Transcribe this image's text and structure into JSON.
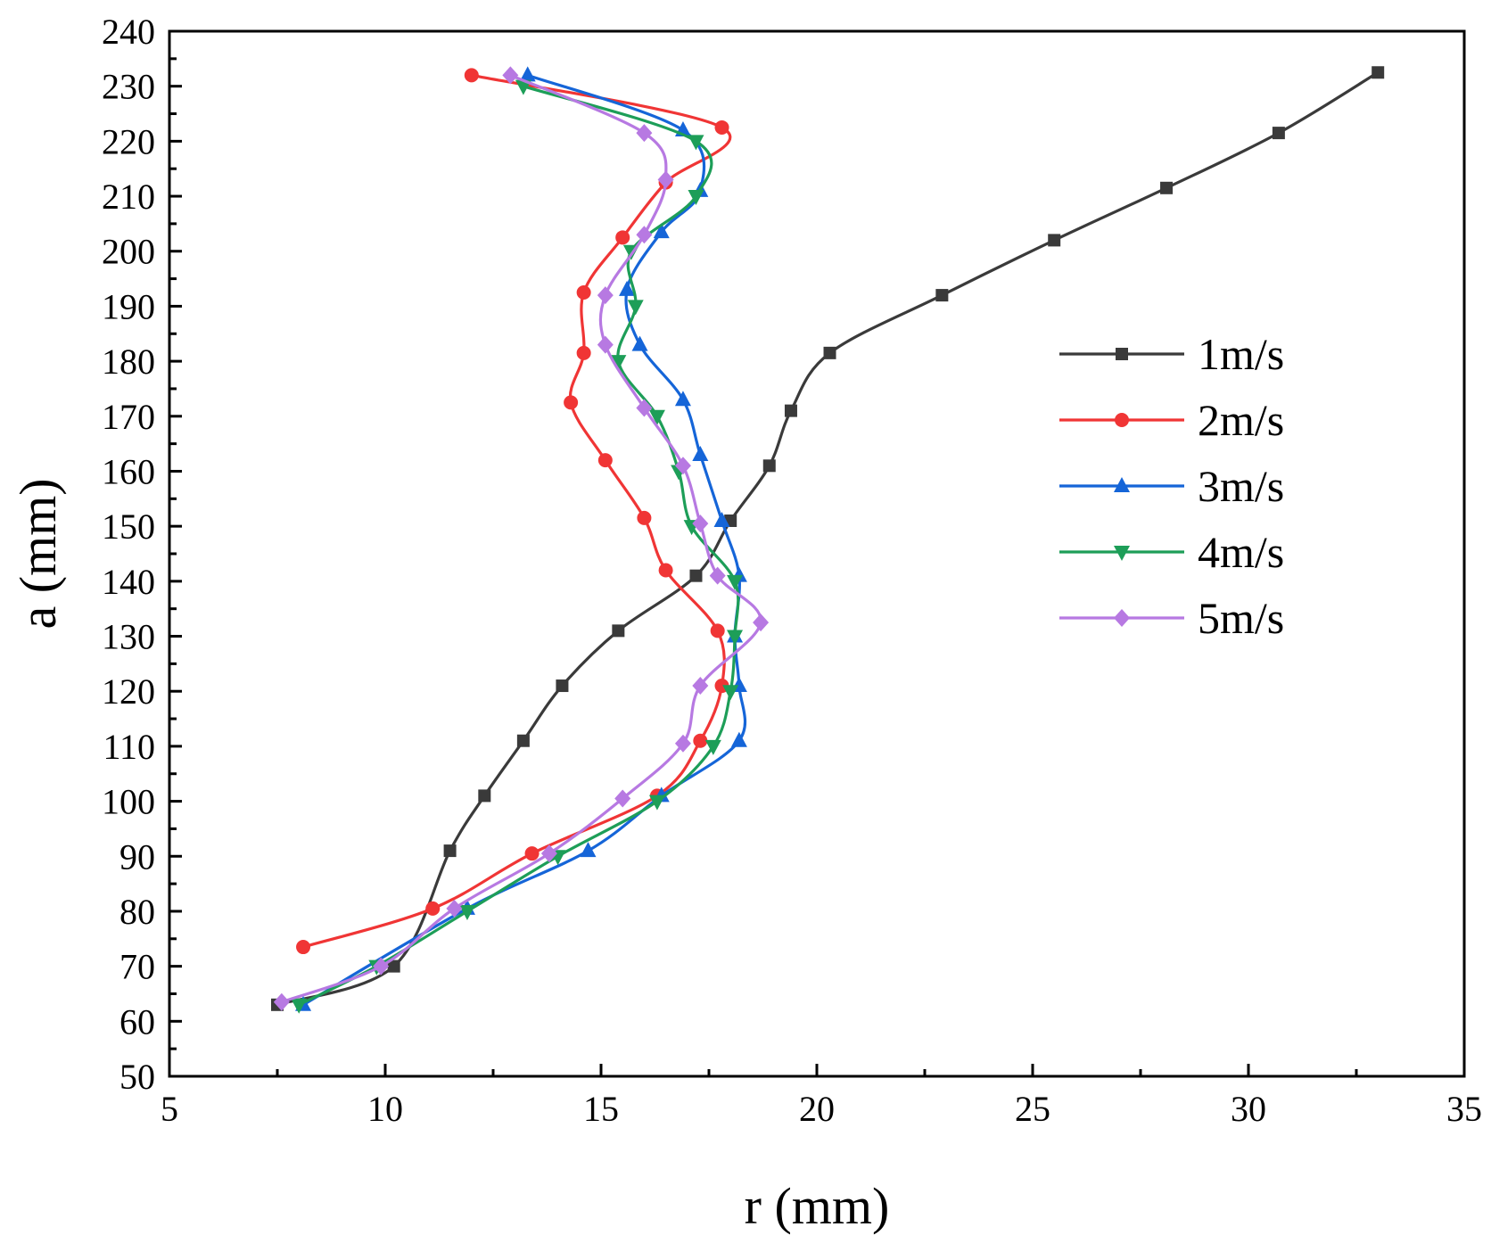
{
  "chart_data": {
    "type": "line",
    "title": "",
    "xlabel": "r (mm)",
    "ylabel": "a (mm)",
    "xlim": [
      5,
      35
    ],
    "ylim": [
      50,
      240
    ],
    "xticks": [
      5,
      10,
      15,
      20,
      25,
      30,
      35
    ],
    "yticks": [
      50,
      60,
      70,
      80,
      90,
      100,
      110,
      120,
      130,
      140,
      150,
      160,
      170,
      180,
      190,
      200,
      210,
      220,
      230,
      240
    ],
    "grid": false,
    "legend_position": "right",
    "series": [
      {
        "name": "1m/s",
        "color": "#3a3a3a",
        "marker": "square",
        "points": [
          [
            7.5,
            63
          ],
          [
            10.2,
            70
          ],
          [
            11.5,
            91
          ],
          [
            12.3,
            101
          ],
          [
            13.2,
            111
          ],
          [
            14.1,
            121
          ],
          [
            15.4,
            131
          ],
          [
            17.2,
            141
          ],
          [
            18.0,
            151
          ],
          [
            18.9,
            161
          ],
          [
            19.4,
            171
          ],
          [
            20.3,
            181.5
          ],
          [
            22.9,
            192
          ],
          [
            25.5,
            202
          ],
          [
            28.1,
            211.5
          ],
          [
            30.7,
            221.5
          ],
          [
            33.0,
            232.5
          ]
        ]
      },
      {
        "name": "2m/s",
        "color": "#f03535",
        "marker": "circle",
        "points": [
          [
            8.1,
            73.5
          ],
          [
            11.1,
            80.5
          ],
          [
            13.4,
            90.5
          ],
          [
            16.3,
            101
          ],
          [
            17.3,
            111
          ],
          [
            17.8,
            121
          ],
          [
            17.7,
            131
          ],
          [
            16.5,
            142
          ],
          [
            16.0,
            151.5
          ],
          [
            15.1,
            162
          ],
          [
            14.3,
            172.5
          ],
          [
            14.6,
            181.5
          ],
          [
            14.6,
            192.5
          ],
          [
            15.5,
            202.5
          ],
          [
            16.5,
            212.5
          ],
          [
            17.8,
            222.5
          ],
          [
            12.0,
            232
          ]
        ]
      },
      {
        "name": "3m/s",
        "color": "#1565d8",
        "marker": "triangle-up",
        "points": [
          [
            8.1,
            63
          ],
          [
            11.9,
            80.5
          ],
          [
            14.7,
            91
          ],
          [
            16.4,
            101
          ],
          [
            18.2,
            111
          ],
          [
            18.2,
            121
          ],
          [
            18.1,
            130
          ],
          [
            18.2,
            141
          ],
          [
            17.8,
            151
          ],
          [
            17.3,
            163
          ],
          [
            16.9,
            173
          ],
          [
            15.9,
            183
          ],
          [
            15.6,
            193
          ],
          [
            16.4,
            203.5
          ],
          [
            17.3,
            211
          ],
          [
            16.9,
            222
          ],
          [
            13.3,
            232
          ]
        ]
      },
      {
        "name": "4m/s",
        "color": "#1d9e58",
        "marker": "triangle-down",
        "points": [
          [
            8.0,
            63
          ],
          [
            9.8,
            70
          ],
          [
            11.9,
            80
          ],
          [
            14.0,
            90
          ],
          [
            16.3,
            100
          ],
          [
            17.6,
            110
          ],
          [
            18.0,
            120
          ],
          [
            18.1,
            130
          ],
          [
            18.1,
            140
          ],
          [
            17.1,
            150
          ],
          [
            16.8,
            160
          ],
          [
            16.3,
            170
          ],
          [
            15.4,
            180
          ],
          [
            15.8,
            190
          ],
          [
            15.7,
            200
          ],
          [
            17.2,
            210
          ],
          [
            17.2,
            220
          ],
          [
            13.2,
            230
          ]
        ]
      },
      {
        "name": "5m/s",
        "color": "#b779e2",
        "marker": "diamond",
        "points": [
          [
            7.6,
            63.5
          ],
          [
            9.9,
            70
          ],
          [
            11.6,
            80.5
          ],
          [
            13.8,
            90.5
          ],
          [
            15.5,
            100.5
          ],
          [
            16.9,
            110.5
          ],
          [
            17.3,
            121
          ],
          [
            18.7,
            132.5
          ],
          [
            17.7,
            141
          ],
          [
            17.3,
            150.5
          ],
          [
            16.9,
            161
          ],
          [
            16.0,
            171.5
          ],
          [
            15.1,
            183
          ],
          [
            15.1,
            192
          ],
          [
            16.0,
            203
          ],
          [
            16.5,
            213
          ],
          [
            16.0,
            221.5
          ],
          [
            12.9,
            232
          ]
        ]
      }
    ]
  }
}
